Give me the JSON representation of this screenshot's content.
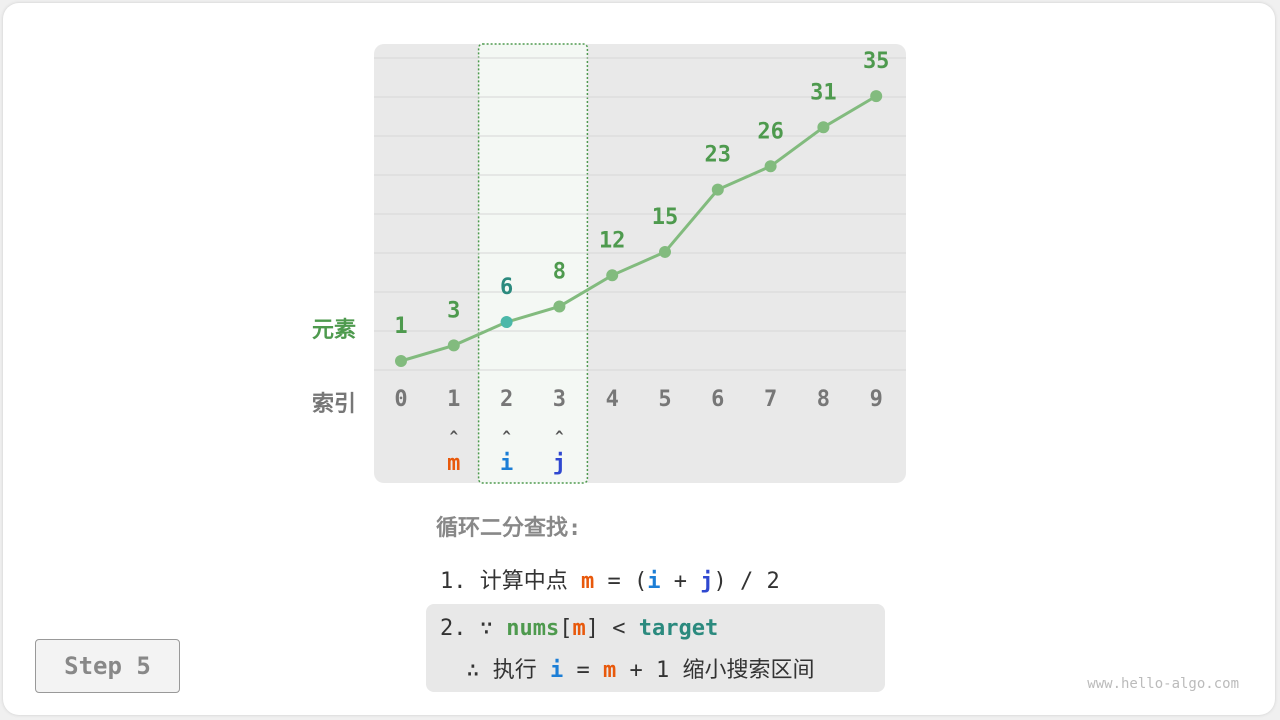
{
  "colors": {
    "element": "#4e9a4e",
    "index": "#777777",
    "m": "#e8590c",
    "i": "#1c7ed6",
    "j": "#2f48d0",
    "target": "#2b8a7e",
    "line": "#82bb7e",
    "mid_point": "#4bb8a9"
  },
  "chart_data": {
    "type": "line",
    "row_labels": {
      "element": "元素",
      "index": "索引"
    },
    "indices": [
      0,
      1,
      2,
      3,
      4,
      5,
      6,
      7,
      8,
      9
    ],
    "values": [
      1,
      3,
      6,
      8,
      12,
      15,
      23,
      26,
      31,
      35
    ],
    "highlight_range": [
      2,
      3
    ],
    "highlight_point": 2,
    "pointers": [
      {
        "index": 1,
        "label": "m"
      },
      {
        "index": 2,
        "label": "i"
      },
      {
        "index": 3,
        "label": "j"
      }
    ],
    "pointer_glyph": "^"
  },
  "text": {
    "title": "循环二分查找:",
    "line1": {
      "num": "1.",
      "a": "计算中点",
      "m": "m",
      "eq": "=",
      "lp": "(",
      "i": "i",
      "plus": "+",
      "j": "j",
      "rest": ") / 2"
    },
    "line2": {
      "num": "2.",
      "because": "∵",
      "nums": "nums",
      "lb": "[",
      "m": "m",
      "rb": "]",
      "lt": "<",
      "target": "target"
    },
    "line3": {
      "therefore": "∴",
      "a": "执行",
      "i": "i",
      "eq": "=",
      "m": "m",
      "rest": "+ 1",
      "b": "缩小搜索区间"
    }
  },
  "step": "Step 5",
  "watermark": "www.hello-algo.com"
}
